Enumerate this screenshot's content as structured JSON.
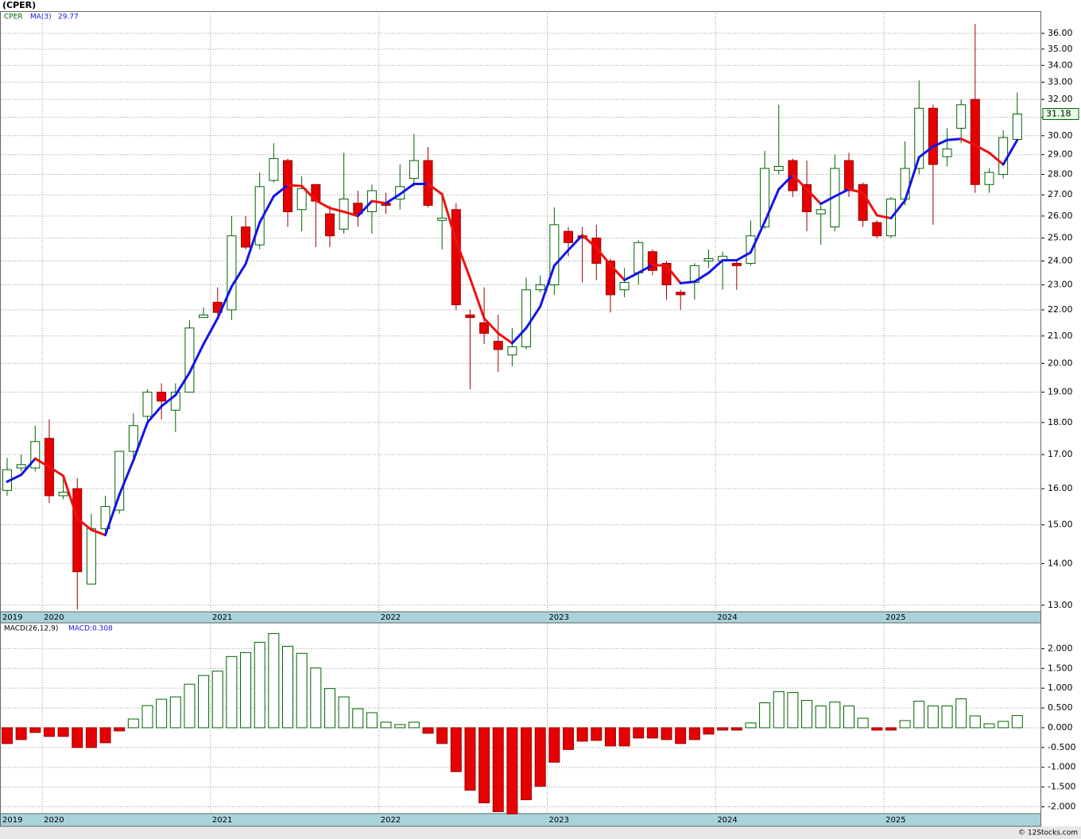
{
  "chart_data": [
    {
      "type": "candlestick",
      "title": "(CPER)",
      "name": "CPER",
      "log_scale": true,
      "grid": true,
      "up_color": "#006400",
      "down_color": "#e60000",
      "categories": [
        "2019",
        null,
        null,
        "2020",
        null,
        null,
        null,
        null,
        null,
        null,
        null,
        null,
        null,
        null,
        null,
        "2021",
        null,
        null,
        null,
        null,
        null,
        null,
        null,
        null,
        null,
        null,
        null,
        "2022",
        null,
        null,
        null,
        null,
        null,
        null,
        null,
        null,
        null,
        null,
        null,
        "2023",
        null,
        null,
        null,
        null,
        null,
        null,
        null,
        null,
        null,
        null,
        null,
        "2024",
        null,
        null,
        null,
        null,
        null,
        null,
        null,
        null,
        null,
        null,
        null,
        "2025",
        null,
        null,
        null,
        null,
        null,
        null,
        null,
        null,
        null
      ],
      "open": [
        15.95,
        16.6,
        16.6,
        17.5,
        15.8,
        16.0,
        13.5,
        14.9,
        15.4,
        17.1,
        18.2,
        19.0,
        18.4,
        19.0,
        21.7,
        22.3,
        22.0,
        25.5,
        24.7,
        27.7,
        28.7,
        26.3,
        27.5,
        26.1,
        25.4,
        26.6,
        26.2,
        26.6,
        26.8,
        27.8,
        28.7,
        25.8,
        26.3,
        21.8,
        21.5,
        20.8,
        20.3,
        20.6,
        22.8,
        23.0,
        25.3,
        25.1,
        25.0,
        24.0,
        22.8,
        23.5,
        24.4,
        23.9,
        22.7,
        23.1,
        24.0,
        24.0,
        23.9,
        23.9,
        25.5,
        28.2,
        28.7,
        27.5,
        26.1,
        25.5,
        28.7,
        27.5,
        25.7,
        25.1,
        26.8,
        28.3,
        31.5,
        28.9,
        30.4,
        32.0,
        27.5,
        28.0,
        29.8
      ],
      "high": [
        16.9,
        17.0,
        17.9,
        18.1,
        16.4,
        16.3,
        15.3,
        15.8,
        17.1,
        18.3,
        19.1,
        19.3,
        19.3,
        21.6,
        22.1,
        22.9,
        26.0,
        26.0,
        28.1,
        29.6,
        28.8,
        27.9,
        27.5,
        26.5,
        29.1,
        27.2,
        27.5,
        27.1,
        28.5,
        30.1,
        29.4,
        27.0,
        26.6,
        22.0,
        22.9,
        21.8,
        21.3,
        23.3,
        23.4,
        26.4,
        25.5,
        25.5,
        25.6,
        24.1,
        23.7,
        24.9,
        24.5,
        24.0,
        22.8,
        23.9,
        24.5,
        24.4,
        24.0,
        25.8,
        29.2,
        31.7,
        28.8,
        28.7,
        26.5,
        29.0,
        29.1,
        27.6,
        25.8,
        26.9,
        29.7,
        33.1,
        31.7,
        30.4,
        32.0,
        36.6,
        28.3,
        30.3,
        32.4
      ],
      "low": [
        15.8,
        16.5,
        16.5,
        15.6,
        15.7,
        12.9,
        13.5,
        14.7,
        15.3,
        16.9,
        17.9,
        18.1,
        17.7,
        19.0,
        21.7,
        21.8,
        21.6,
        24.5,
        24.5,
        27.6,
        25.5,
        25.3,
        24.6,
        24.6,
        25.2,
        25.5,
        25.2,
        26.1,
        26.3,
        27.4,
        26.4,
        24.5,
        22.0,
        19.1,
        20.7,
        19.7,
        19.9,
        20.5,
        22.7,
        22.6,
        24.2,
        23.1,
        23.2,
        21.9,
        22.5,
        23.0,
        23.4,
        22.4,
        22.0,
        22.4,
        23.7,
        22.8,
        22.8,
        23.8,
        25.4,
        28.0,
        26.9,
        25.3,
        24.7,
        25.3,
        26.9,
        25.5,
        25.0,
        25.0,
        26.5,
        28.0,
        25.6,
        28.4,
        29.6,
        27.1,
        27.1,
        27.8,
        29.7
      ],
      "close": [
        16.55,
        16.7,
        17.4,
        15.8,
        15.9,
        13.8,
        14.9,
        15.5,
        17.1,
        17.9,
        19.0,
        18.7,
        19.0,
        21.3,
        21.8,
        21.9,
        25.1,
        24.6,
        27.4,
        28.8,
        26.2,
        27.3,
        26.7,
        25.1,
        26.8,
        26.1,
        27.2,
        26.5,
        27.4,
        28.7,
        26.5,
        25.9,
        22.2,
        21.7,
        21.1,
        20.5,
        20.6,
        22.8,
        23.0,
        25.6,
        24.8,
        25.0,
        23.9,
        22.6,
        23.1,
        24.8,
        23.6,
        23.0,
        22.6,
        23.8,
        24.1,
        24.2,
        23.8,
        25.1,
        28.3,
        28.4,
        27.2,
        26.2,
        26.3,
        28.3,
        27.2,
        25.8,
        25.1,
        26.8,
        28.3,
        31.5,
        28.5,
        29.3,
        31.7,
        27.5,
        28.1,
        29.9,
        31.18
      ],
      "series": [
        {
          "name": "MA(3)",
          "color": "#1414e6",
          "down_color": "#ee1111",
          "values": [
            16.2,
            16.4,
            16.88,
            16.63,
            16.37,
            15.17,
            14.87,
            14.73,
            15.83,
            16.83,
            18.0,
            18.53,
            18.9,
            19.67,
            20.7,
            21.67,
            22.93,
            23.87,
            25.7,
            26.93,
            27.47,
            27.43,
            26.73,
            26.37,
            26.2,
            26.0,
            26.7,
            26.6,
            27.03,
            27.53,
            27.53,
            27.03,
            24.87,
            23.27,
            21.67,
            21.1,
            20.73,
            21.3,
            22.13,
            23.8,
            24.47,
            25.13,
            24.57,
            23.83,
            23.2,
            23.5,
            23.83,
            23.8,
            23.07,
            23.13,
            23.5,
            24.03,
            24.03,
            24.37,
            25.73,
            27.27,
            27.97,
            27.27,
            26.57,
            26.93,
            27.27,
            27.1,
            26.03,
            25.9,
            26.73,
            28.87,
            29.43,
            29.77,
            29.83,
            29.5,
            29.1,
            28.5,
            29.77
          ]
        }
      ],
      "ylim": [
        12.85,
        37.45
      ],
      "yticks": [
        {
          "value": 13,
          "label": "13.00"
        },
        {
          "value": 14,
          "label": "14.00"
        },
        {
          "value": 15,
          "label": "15.00"
        },
        {
          "value": 16,
          "label": "16.00"
        },
        {
          "value": 17,
          "label": "17.00"
        },
        {
          "value": 18,
          "label": "18.00"
        },
        {
          "value": 19,
          "label": "19.00"
        },
        {
          "value": 20,
          "label": "20.00"
        },
        {
          "value": 21,
          "label": "21.00"
        },
        {
          "value": 22,
          "label": "22.00"
        },
        {
          "value": 23,
          "label": "23.00"
        },
        {
          "value": 24,
          "label": "24.00"
        },
        {
          "value": 25,
          "label": "25.00"
        },
        {
          "value": 26,
          "label": "26.00"
        },
        {
          "value": 27,
          "label": "27.00"
        },
        {
          "value": 28,
          "label": "28.00"
        },
        {
          "value": 29,
          "label": "29.00"
        },
        {
          "value": 30,
          "label": "30.00"
        },
        {
          "value": 31,
          "label": "31.00"
        },
        {
          "value": 32,
          "label": "32.00"
        },
        {
          "value": 33,
          "label": "33.00"
        },
        {
          "value": 34,
          "label": "34.00"
        },
        {
          "value": 35,
          "label": "35.00"
        },
        {
          "value": 36,
          "label": "36.00"
        }
      ]
    },
    {
      "type": "bar",
      "name": "MACD(26,12,9)",
      "value_legend": "MACD:0.308",
      "grid": true,
      "up_color": "#006400",
      "down_color": "#e60000",
      "categories": [
        "2019",
        null,
        null,
        "2020",
        null,
        null,
        null,
        null,
        null,
        null,
        null,
        null,
        null,
        null,
        null,
        "2021",
        null,
        null,
        null,
        null,
        null,
        null,
        null,
        null,
        null,
        null,
        null,
        "2022",
        null,
        null,
        null,
        null,
        null,
        null,
        null,
        null,
        null,
        null,
        null,
        "2023",
        null,
        null,
        null,
        null,
        null,
        null,
        null,
        null,
        null,
        null,
        null,
        "2024",
        null,
        null,
        null,
        null,
        null,
        null,
        null,
        null,
        null,
        null,
        null,
        "2025",
        null,
        null,
        null,
        null,
        null,
        null,
        null,
        null,
        null
      ],
      "values": [
        -0.4,
        -0.3,
        -0.12,
        -0.22,
        -0.22,
        -0.5,
        -0.5,
        -0.38,
        -0.08,
        0.22,
        0.56,
        0.72,
        0.78,
        1.1,
        1.32,
        1.43,
        1.8,
        1.9,
        2.16,
        2.38,
        2.06,
        1.88,
        1.51,
        0.99,
        0.78,
        0.48,
        0.38,
        0.14,
        0.08,
        0.14,
        -0.14,
        -0.4,
        -1.11,
        -1.58,
        -1.9,
        -2.12,
        -2.18,
        -1.82,
        -1.48,
        -0.87,
        -0.55,
        -0.34,
        -0.32,
        -0.46,
        -0.46,
        -0.26,
        -0.26,
        -0.3,
        -0.4,
        -0.3,
        -0.16,
        -0.06,
        -0.06,
        0.12,
        0.63,
        0.91,
        0.89,
        0.69,
        0.55,
        0.65,
        0.55,
        0.24,
        -0.06,
        -0.06,
        0.18,
        0.67,
        0.55,
        0.55,
        0.73,
        0.3,
        0.1,
        0.16,
        0.308
      ],
      "ylim": [
        -2.17,
        2.65
      ],
      "yticks": [
        {
          "value": 2,
          "label": "2.000"
        },
        {
          "value": 1.5,
          "label": "1.500"
        },
        {
          "value": 1,
          "label": "1.000"
        },
        {
          "value": 0.5,
          "label": "0.500"
        },
        {
          "value": 0,
          "label": "0.000"
        },
        {
          "value": -0.5,
          "label": "-0.500"
        },
        {
          "value": -1,
          "label": "-1.000"
        },
        {
          "value": -1.5,
          "label": "-1.500"
        },
        {
          "value": -2,
          "label": "-2.000"
        }
      ]
    }
  ],
  "footer": "© 12Stocks.com"
}
